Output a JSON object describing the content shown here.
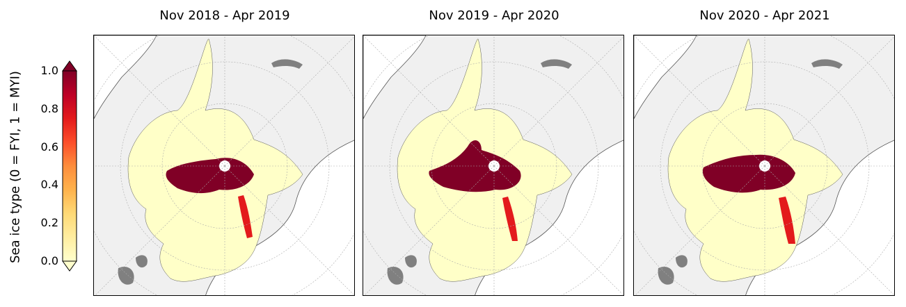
{
  "panels": [
    {
      "title": "Nov 2018 - Apr 2019"
    },
    {
      "title": "Nov 2019 - Apr 2020"
    },
    {
      "title": "Nov 2020 - Apr 2021"
    }
  ],
  "colorbar": {
    "label": "Sea ice type (0 = FYI, 1 = MYI)",
    "ticks": [
      "0.0",
      "0.2",
      "0.4",
      "0.6",
      "0.8",
      "1.0"
    ],
    "colormap": [
      "#ffffcc",
      "#ffeda0",
      "#fed976",
      "#feb24c",
      "#fd8d3c",
      "#fc4e2a",
      "#e31a1c",
      "#bd0026",
      "#800026"
    ]
  },
  "colors": {
    "land": "#f0f0f0",
    "land_outline": "#555555",
    "ocean": "#ffffff",
    "fyi": "#ffffc8",
    "myi": "#800026",
    "lakes": "#808080",
    "grid": "#aaaaaa"
  }
}
